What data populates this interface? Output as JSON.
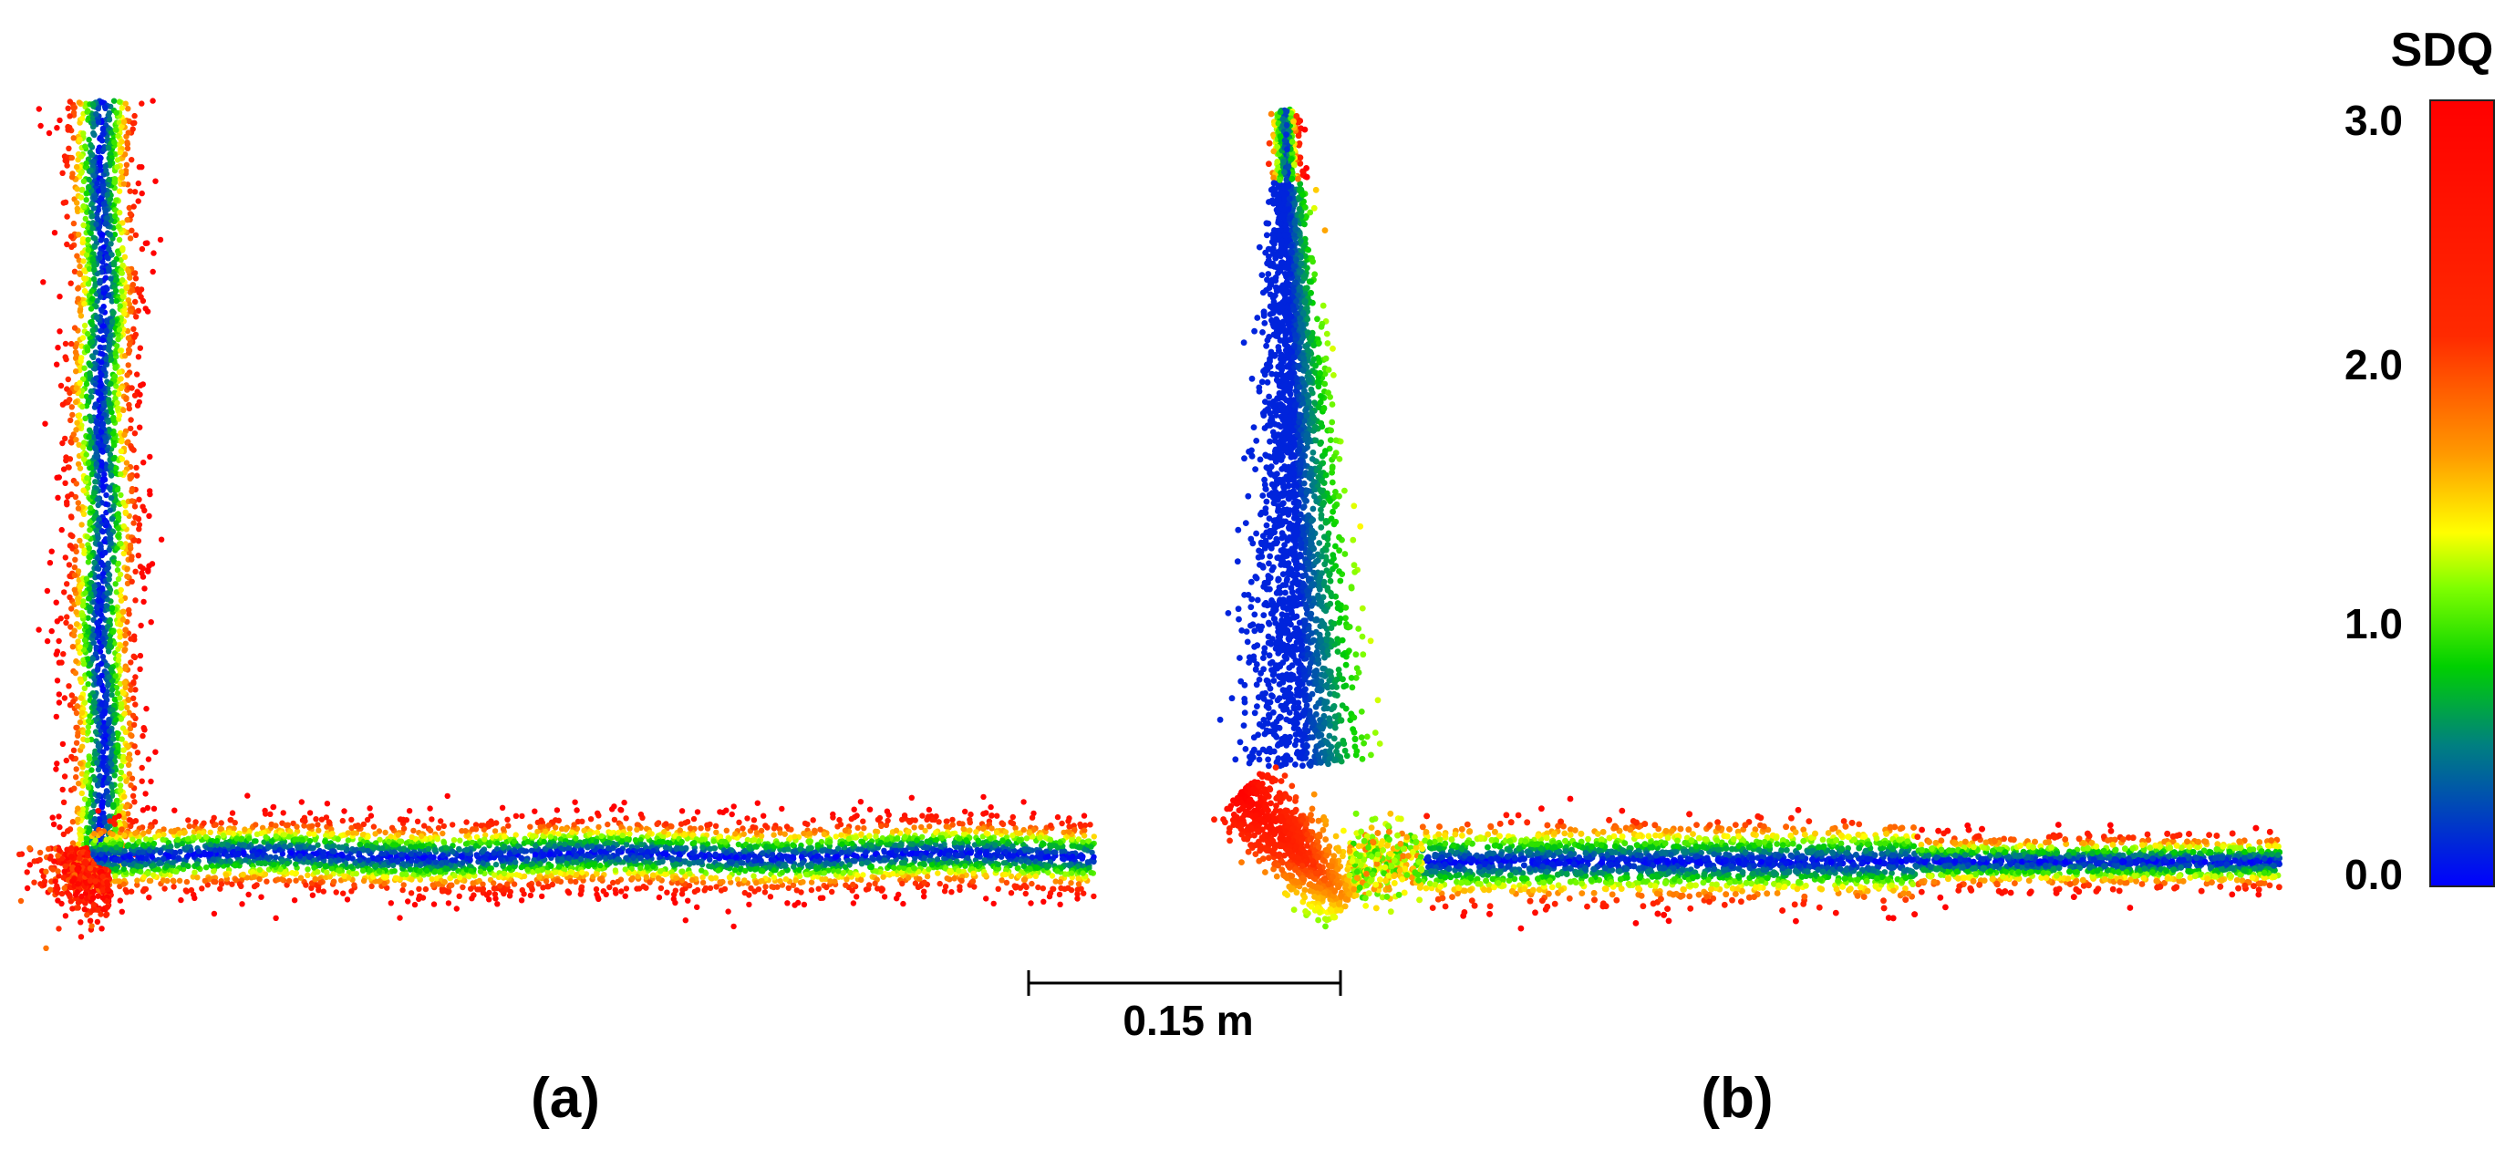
{
  "panels": [
    {
      "label": "(a)"
    },
    {
      "label": "(b)"
    }
  ],
  "scale_bar": {
    "label": "0.15 m"
  },
  "colorbar": {
    "title": "SDQ",
    "ticks": [
      "3.0",
      "2.0",
      "1.0",
      "0.0"
    ],
    "tick_values": [
      3.0,
      2.0,
      1.0,
      0.0
    ],
    "range": [
      0.0,
      3.0
    ],
    "colors": [
      "#0000ff",
      "#00c400",
      "#ffff00",
      "#ff8c00",
      "#ff0000"
    ]
  },
  "palette": {
    "background": "#ffffff",
    "text": "#000000"
  }
}
